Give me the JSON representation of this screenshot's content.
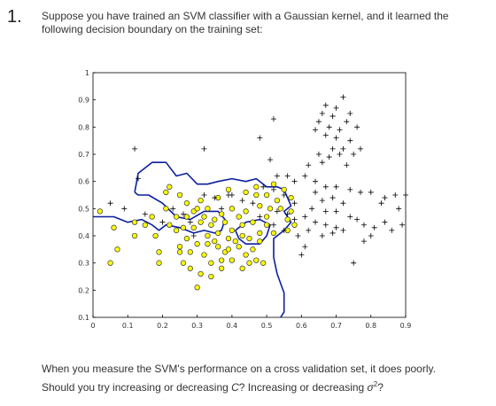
{
  "question": {
    "number": "1.",
    "text": "Suppose you have trained an SVM classifier with a Gaussian kernel, and it learned the following decision boundary on the training set:"
  },
  "followup": {
    "line1": "When you measure the SVM's performance on a cross validation set, it does poorly.",
    "line2_pre": "Should you try increasing or decreasing ",
    "line2_C": "C",
    "line2_mid": "? Increasing or decreasing ",
    "line2_sigma": "σ",
    "line2_sup": "2",
    "line2_post": "?"
  },
  "colors": {
    "boundary": "#0b1f9e",
    "positive_marker": "#000000",
    "negative_fill": "#ffff00",
    "negative_edge": "#333333"
  },
  "chart_data": {
    "type": "scatter",
    "title": "",
    "xlabel": "",
    "ylabel": "",
    "xlim": [
      0,
      0.9
    ],
    "ylim": [
      0.1,
      1
    ],
    "grid": false,
    "x_ticks": [
      "0",
      "0.1",
      "0.2",
      "0.3",
      "0.4",
      "0.5",
      "0.6",
      "0.7",
      "0.8",
      "0.9"
    ],
    "y_ticks": [
      "0.1",
      "0.2",
      "0.3",
      "0.4",
      "0.5",
      "0.6",
      "0.7",
      "0.8",
      "0.9",
      "1"
    ],
    "series": [
      {
        "marker": "plus",
        "points": [
          [
            0.72,
            0.91
          ],
          [
            0.67,
            0.88
          ],
          [
            0.7,
            0.87
          ],
          [
            0.74,
            0.85
          ],
          [
            0.66,
            0.85
          ],
          [
            0.69,
            0.84
          ],
          [
            0.73,
            0.82
          ],
          [
            0.65,
            0.82
          ],
          [
            0.68,
            0.8
          ],
          [
            0.71,
            0.79
          ],
          [
            0.76,
            0.8
          ],
          [
            0.64,
            0.79
          ],
          [
            0.67,
            0.77
          ],
          [
            0.7,
            0.76
          ],
          [
            0.74,
            0.75
          ],
          [
            0.77,
            0.72
          ],
          [
            0.72,
            0.72
          ],
          [
            0.69,
            0.72
          ],
          [
            0.65,
            0.7
          ],
          [
            0.68,
            0.69
          ],
          [
            0.71,
            0.7
          ],
          [
            0.75,
            0.7
          ],
          [
            0.66,
            0.67
          ],
          [
            0.62,
            0.66
          ],
          [
            0.73,
            0.66
          ],
          [
            0.61,
            0.62
          ],
          [
            0.64,
            0.6
          ],
          [
            0.67,
            0.58
          ],
          [
            0.7,
            0.58
          ],
          [
            0.74,
            0.57
          ],
          [
            0.77,
            0.56
          ],
          [
            0.8,
            0.56
          ],
          [
            0.84,
            0.54
          ],
          [
            0.87,
            0.55
          ],
          [
            0.9,
            0.55
          ],
          [
            0.83,
            0.52
          ],
          [
            0.88,
            0.5
          ],
          [
            0.64,
            0.56
          ],
          [
            0.66,
            0.53
          ],
          [
            0.69,
            0.54
          ],
          [
            0.72,
            0.52
          ],
          [
            0.63,
            0.5
          ],
          [
            0.67,
            0.49
          ],
          [
            0.7,
            0.49
          ],
          [
            0.74,
            0.47
          ],
          [
            0.76,
            0.46
          ],
          [
            0.78,
            0.44
          ],
          [
            0.81,
            0.43
          ],
          [
            0.84,
            0.45
          ],
          [
            0.89,
            0.44
          ],
          [
            0.86,
            0.42
          ],
          [
            0.8,
            0.4
          ],
          [
            0.78,
            0.38
          ],
          [
            0.61,
            0.47
          ],
          [
            0.64,
            0.45
          ],
          [
            0.67,
            0.44
          ],
          [
            0.7,
            0.43
          ],
          [
            0.72,
            0.42
          ],
          [
            0.66,
            0.4
          ],
          [
            0.69,
            0.41
          ],
          [
            0.62,
            0.42
          ],
          [
            0.59,
            0.4
          ],
          [
            0.61,
            0.36
          ],
          [
            0.6,
            0.33
          ],
          [
            0.75,
            0.3
          ],
          [
            0.52,
            0.83
          ],
          [
            0.48,
            0.76
          ],
          [
            0.51,
            0.68
          ],
          [
            0.53,
            0.62
          ],
          [
            0.56,
            0.62
          ],
          [
            0.58,
            0.6
          ],
          [
            0.49,
            0.58
          ],
          [
            0.52,
            0.57
          ],
          [
            0.55,
            0.55
          ],
          [
            0.58,
            0.52
          ],
          [
            0.53,
            0.49
          ],
          [
            0.56,
            0.48
          ],
          [
            0.58,
            0.46
          ],
          [
            0.52,
            0.44
          ],
          [
            0.55,
            0.42
          ],
          [
            0.48,
            0.47
          ],
          [
            0.05,
            0.52
          ],
          [
            0.09,
            0.5
          ],
          [
            0.15,
            0.48
          ],
          [
            0.23,
            0.5
          ],
          [
            0.26,
            0.48
          ],
          [
            0.28,
            0.45
          ],
          [
            0.35,
            0.54
          ],
          [
            0.32,
            0.55
          ],
          [
            0.39,
            0.55
          ],
          [
            0.29,
            0.4
          ],
          [
            0.13,
            0.61
          ],
          [
            0.12,
            0.72
          ],
          [
            0.32,
            0.72
          ],
          [
            0.4,
            0.55
          ],
          [
            0.43,
            0.53
          ],
          [
            0.2,
            0.45
          ],
          [
            0.46,
            0.52
          ],
          [
            0.37,
            0.5
          ]
        ]
      },
      {
        "marker": "circle",
        "points": [
          [
            0.02,
            0.49
          ],
          [
            0.06,
            0.43
          ],
          [
            0.07,
            0.35
          ],
          [
            0.05,
            0.3
          ],
          [
            0.12,
            0.4
          ],
          [
            0.12,
            0.45
          ],
          [
            0.18,
            0.4
          ],
          [
            0.22,
            0.44
          ],
          [
            0.19,
            0.34
          ],
          [
            0.19,
            0.3
          ],
          [
            0.24,
            0.42
          ],
          [
            0.27,
            0.39
          ],
          [
            0.25,
            0.36
          ],
          [
            0.28,
            0.34
          ],
          [
            0.26,
            0.3
          ],
          [
            0.3,
            0.37
          ],
          [
            0.32,
            0.33
          ],
          [
            0.28,
            0.28
          ],
          [
            0.31,
            0.26
          ],
          [
            0.34,
            0.3
          ],
          [
            0.33,
            0.4
          ],
          [
            0.36,
            0.36
          ],
          [
            0.38,
            0.34
          ],
          [
            0.36,
            0.41
          ],
          [
            0.39,
            0.39
          ],
          [
            0.4,
            0.42
          ],
          [
            0.43,
            0.4
          ],
          [
            0.42,
            0.36
          ],
          [
            0.44,
            0.33
          ],
          [
            0.4,
            0.31
          ],
          [
            0.46,
            0.35
          ],
          [
            0.47,
            0.31
          ],
          [
            0.49,
            0.3
          ],
          [
            0.45,
            0.39
          ],
          [
            0.48,
            0.41
          ],
          [
            0.5,
            0.44
          ],
          [
            0.52,
            0.41
          ],
          [
            0.21,
            0.5
          ],
          [
            0.24,
            0.47
          ],
          [
            0.27,
            0.52
          ],
          [
            0.29,
            0.49
          ],
          [
            0.25,
            0.55
          ],
          [
            0.21,
            0.56
          ],
          [
            0.31,
            0.53
          ],
          [
            0.33,
            0.5
          ],
          [
            0.35,
            0.46
          ],
          [
            0.37,
            0.48
          ],
          [
            0.34,
            0.44
          ],
          [
            0.31,
            0.45
          ],
          [
            0.4,
            0.5
          ],
          [
            0.42,
            0.47
          ],
          [
            0.44,
            0.49
          ],
          [
            0.38,
            0.45
          ],
          [
            0.36,
            0.54
          ],
          [
            0.39,
            0.57
          ],
          [
            0.44,
            0.56
          ],
          [
            0.47,
            0.55
          ],
          [
            0.5,
            0.55
          ],
          [
            0.53,
            0.53
          ],
          [
            0.48,
            0.51
          ],
          [
            0.51,
            0.5
          ],
          [
            0.54,
            0.5
          ],
          [
            0.56,
            0.46
          ],
          [
            0.5,
            0.47
          ],
          [
            0.46,
            0.45
          ],
          [
            0.22,
            0.58
          ],
          [
            0.3,
            0.5
          ],
          [
            0.26,
            0.43
          ],
          [
            0.32,
            0.47
          ],
          [
            0.17,
            0.47
          ],
          [
            0.15,
            0.44
          ],
          [
            0.43,
            0.44
          ],
          [
            0.41,
            0.38
          ],
          [
            0.35,
            0.38
          ],
          [
            0.37,
            0.31
          ],
          [
            0.3,
            0.21
          ],
          [
            0.34,
            0.25
          ],
          [
            0.37,
            0.28
          ],
          [
            0.43,
            0.28
          ],
          [
            0.45,
            0.3
          ],
          [
            0.25,
            0.34
          ],
          [
            0.47,
            0.58
          ],
          [
            0.52,
            0.59
          ],
          [
            0.55,
            0.57
          ],
          [
            0.57,
            0.54
          ],
          [
            0.57,
            0.49
          ],
          [
            0.56,
            0.42
          ],
          [
            0.58,
            0.44
          ],
          [
            0.27,
            0.47
          ],
          [
            0.29,
            0.43
          ],
          [
            0.39,
            0.35
          ],
          [
            0.33,
            0.37
          ],
          [
            0.48,
            0.38
          ]
        ]
      }
    ],
    "boundary_curves": [
      [
        [
          0.12,
          0.56
        ],
        [
          0.13,
          0.63
        ],
        [
          0.17,
          0.67
        ],
        [
          0.21,
          0.67
        ],
        [
          0.24,
          0.62
        ],
        [
          0.27,
          0.63
        ],
        [
          0.3,
          0.59
        ],
        [
          0.33,
          0.59
        ],
        [
          0.36,
          0.6
        ],
        [
          0.4,
          0.61
        ],
        [
          0.44,
          0.6
        ],
        [
          0.47,
          0.61
        ],
        [
          0.5,
          0.58
        ],
        [
          0.53,
          0.58
        ],
        [
          0.55,
          0.57
        ],
        [
          0.57,
          0.51
        ],
        [
          0.55,
          0.49
        ],
        [
          0.57,
          0.45
        ],
        [
          0.55,
          0.42
        ],
        [
          0.52,
          0.39
        ],
        [
          0.52,
          0.32
        ],
        [
          0.53,
          0.26
        ],
        [
          0.55,
          0.19
        ],
        [
          0.55,
          0.12
        ],
        [
          0.54,
          0.1
        ]
      ],
      [
        [
          0.0,
          0.47
        ],
        [
          0.06,
          0.47
        ],
        [
          0.1,
          0.45
        ],
        [
          0.14,
          0.46
        ],
        [
          0.17,
          0.44
        ],
        [
          0.19,
          0.42
        ],
        [
          0.21,
          0.44
        ],
        [
          0.25,
          0.43
        ],
        [
          0.29,
          0.41
        ],
        [
          0.32,
          0.42
        ],
        [
          0.35,
          0.41
        ],
        [
          0.37,
          0.42
        ],
        [
          0.38,
          0.46
        ],
        [
          0.36,
          0.49
        ],
        [
          0.32,
          0.49
        ],
        [
          0.28,
          0.46
        ],
        [
          0.24,
          0.47
        ],
        [
          0.2,
          0.52
        ],
        [
          0.16,
          0.55
        ],
        [
          0.13,
          0.55
        ],
        [
          0.12,
          0.56
        ]
      ],
      [
        [
          0.41,
          0.42
        ],
        [
          0.44,
          0.45
        ],
        [
          0.48,
          0.46
        ],
        [
          0.51,
          0.44
        ],
        [
          0.5,
          0.4
        ],
        [
          0.48,
          0.37
        ],
        [
          0.44,
          0.37
        ],
        [
          0.42,
          0.39
        ],
        [
          0.41,
          0.42
        ]
      ]
    ]
  }
}
